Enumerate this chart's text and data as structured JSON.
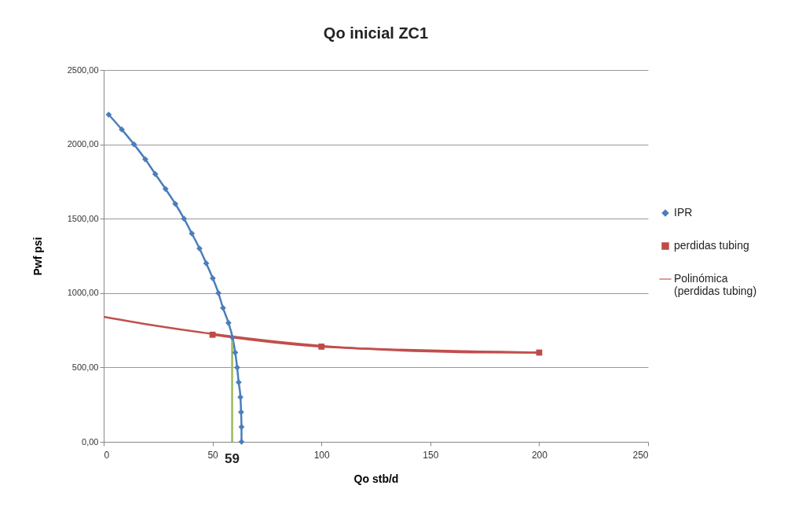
{
  "chart_data": {
    "type": "line",
    "title": "Qo inicial ZC1",
    "xlabel": "Qo stb/d",
    "ylabel": "Pwf psi",
    "xlim": [
      0,
      250
    ],
    "xticks": [
      0,
      50,
      100,
      150,
      200,
      250
    ],
    "ylim": [
      0,
      2500
    ],
    "yticks": [
      {
        "value": 0,
        "label": "0,00"
      },
      {
        "value": 500,
        "label": "500,00"
      },
      {
        "value": 1000,
        "label": "1000,00"
      },
      {
        "value": 1500,
        "label": "1500,00"
      },
      {
        "value": 2000,
        "label": "2000,00"
      },
      {
        "value": 2500,
        "label": "2500,00"
      }
    ],
    "grid": "y",
    "legend": "right",
    "series": [
      {
        "name": "IPR",
        "color": "#4a7ebb",
        "marker": "diamond",
        "x": [
          2.3,
          8.3,
          13.9,
          19.1,
          23.7,
          28.4,
          32.9,
          36.9,
          40.5,
          44.0,
          47.1,
          50.1,
          52.7,
          54.8,
          57.3,
          59.2,
          60.4,
          61.3,
          62.0,
          62.8,
          63.1,
          63.3,
          63.3
        ],
        "values": [
          2200,
          2100,
          2000,
          1900,
          1800,
          1700,
          1600,
          1500,
          1400,
          1300,
          1200,
          1100,
          1000,
          900,
          800,
          700,
          600,
          500,
          400,
          300,
          200,
          100,
          0
        ]
      },
      {
        "name": "perdidas tubing",
        "color": "#be4b48",
        "marker": "square",
        "x": [
          50,
          100,
          200
        ],
        "values": [
          720,
          640,
          600
        ]
      },
      {
        "name": "Polinómica (perdidas tubing)",
        "color": "#c0504d",
        "marker": "none",
        "x": [
          0,
          25,
          50,
          75,
          100,
          125,
          150,
          175,
          200
        ],
        "values": [
          840,
          778,
          725,
          680,
          645,
          622,
          608,
          601,
          600
        ]
      },
      {
        "color": "#9bbb59",
        "marker": "none",
        "x": [
          59,
          59
        ],
        "values": [
          0,
          700
        ]
      }
    ],
    "annotations": [
      {
        "text": "59",
        "x": 59,
        "y": 0
      }
    ]
  }
}
